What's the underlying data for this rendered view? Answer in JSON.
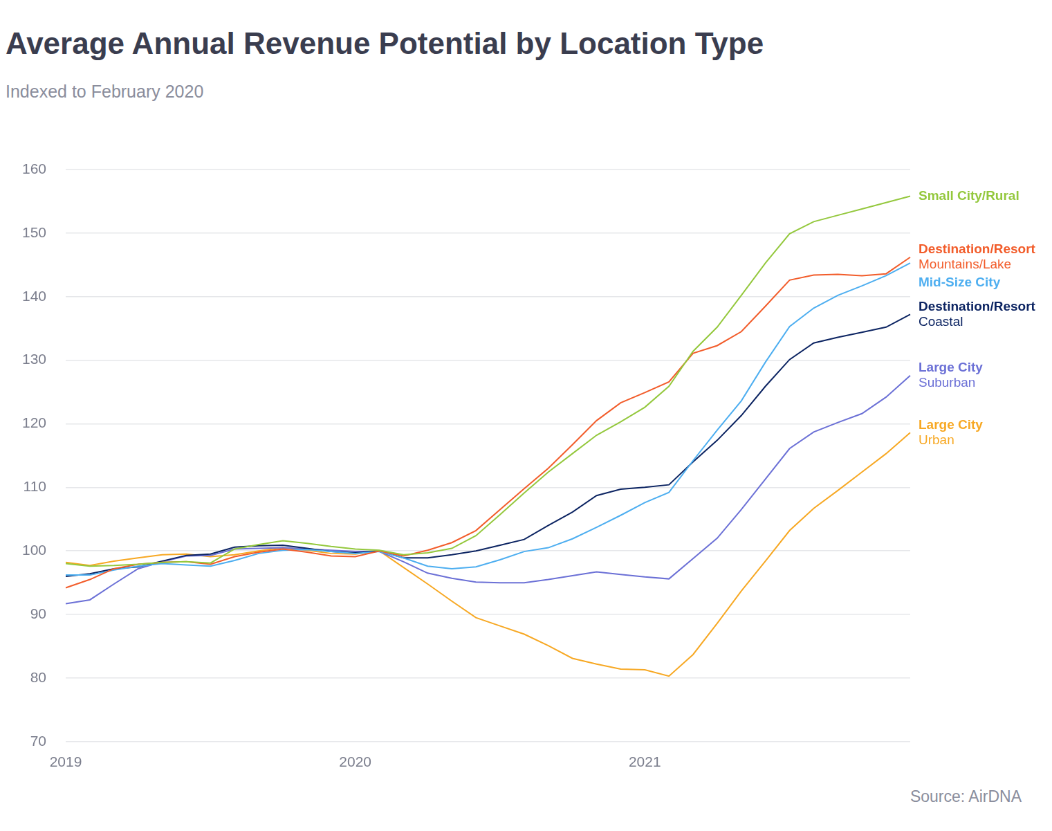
{
  "chart_data": {
    "type": "line",
    "title": "Average Annual Revenue Potential by Location Type",
    "subtitle": "Indexed to February 2020",
    "source": "Source: AirDNA",
    "categories": [
      "2019",
      null,
      null,
      null,
      null,
      null,
      null,
      null,
      null,
      null,
      null,
      null,
      "2020",
      null,
      null,
      null,
      null,
      null,
      null,
      null,
      null,
      null,
      null,
      null,
      "2021",
      null,
      null,
      null,
      null,
      null,
      null,
      null,
      null,
      null,
      null,
      null
    ],
    "ylim": [
      70,
      160
    ],
    "yticks": [
      70,
      80,
      90,
      100,
      110,
      120,
      130,
      140,
      150,
      160
    ],
    "grid": true,
    "series": [
      {
        "name": "Small City/Rural",
        "color": "#94c83d",
        "values": [
          98,
          97.6,
          97.7,
          97.9,
          98.2,
          98.3,
          98.1,
          100.3,
          101,
          101.6,
          101.2,
          100.7,
          100.3,
          100.1,
          99.4,
          99.7,
          100.4,
          102.4,
          105.7,
          109.1,
          112.4,
          115.3,
          118.2,
          120.3,
          122.6,
          125.9,
          131.4,
          135.2,
          140.2,
          145.3,
          149.9,
          151.8,
          152.8,
          153.8,
          154.8,
          155.8
        ]
      },
      {
        "name": "Destination/Resort\nMountains/Lake",
        "color": "#f25c2a",
        "values": [
          94.2,
          95.5,
          97.2,
          97.9,
          98.2,
          98.3,
          97.9,
          99.1,
          99.8,
          100.3,
          99.8,
          99.2,
          99.1,
          100,
          99.2,
          100.1,
          101.3,
          103.2,
          106.5,
          109.8,
          113,
          116.7,
          120.5,
          123.3,
          124.9,
          126.6,
          131.1,
          132.3,
          134.5,
          138.5,
          142.6,
          143.4,
          143.5,
          143.3,
          143.6,
          146.2
        ]
      },
      {
        "name": "Mid-Size City",
        "color": "#4daef0",
        "values": [
          96.2,
          96.2,
          97,
          97.6,
          98,
          97.8,
          97.6,
          98.5,
          99.6,
          100.1,
          100.2,
          99.9,
          99.6,
          99.9,
          98.9,
          97.6,
          97.2,
          97.5,
          98.6,
          99.9,
          100.5,
          101.9,
          103.7,
          105.6,
          107.6,
          109.2,
          114.2,
          119,
          123.6,
          129.7,
          135.3,
          138.2,
          140.2,
          141.7,
          143.3,
          145.3
        ]
      },
      {
        "name": "Destination/Resort\nCoastal",
        "color": "#0c2462",
        "values": [
          96,
          96.4,
          97.2,
          97.5,
          98.4,
          99.3,
          99.5,
          100.6,
          100.8,
          100.9,
          100.4,
          99.9,
          99.7,
          100,
          98.9,
          98.9,
          99.4,
          100,
          100.9,
          101.8,
          104,
          106.1,
          108.7,
          109.7,
          110,
          110.4,
          114,
          117.4,
          121.3,
          125.9,
          130.1,
          132.7,
          133.6,
          134.4,
          135.2,
          137.2
        ]
      },
      {
        "name": "Large City\nSuburban",
        "color": "#6b70d6",
        "values": [
          91.7,
          92.3,
          94.8,
          97.2,
          98.3,
          99.2,
          99.3,
          100.3,
          100.4,
          100.5,
          100.3,
          100.1,
          99.9,
          99.9,
          98.3,
          96.5,
          95.7,
          95.1,
          95,
          95,
          95.5,
          96.1,
          96.7,
          96.3,
          95.9,
          95.6,
          98.8,
          102,
          106.5,
          111.3,
          116.1,
          118.7,
          120.2,
          121.6,
          124.2,
          127.6
        ]
      },
      {
        "name": "Large City\nUrban",
        "color": "#f7a823",
        "values": [
          98.2,
          97.7,
          98.4,
          98.9,
          99.4,
          99.5,
          99.1,
          99.4,
          100,
          100.5,
          100.1,
          99.6,
          99.5,
          100,
          97.4,
          94.8,
          92.1,
          89.5,
          88.2,
          86.9,
          85.1,
          83.1,
          82.2,
          81.4,
          81.3,
          80.3,
          83.7,
          88.6,
          93.7,
          98.4,
          103.2,
          106.7,
          109.5,
          112.4,
          115.3,
          118.6
        ]
      }
    ]
  }
}
